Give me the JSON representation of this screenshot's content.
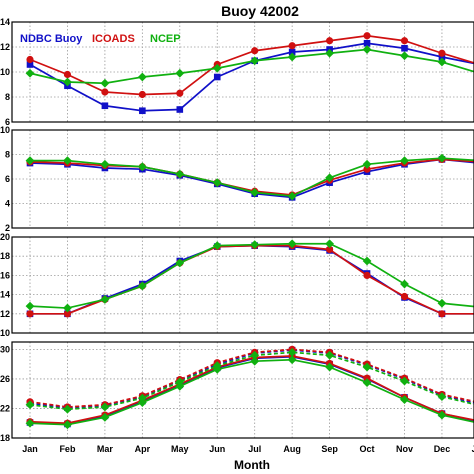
{
  "chart_data": {
    "type": "line",
    "title": "Buoy 42002",
    "xlabel": "Month",
    "categories": [
      "Jan",
      "Feb",
      "Mar",
      "Apr",
      "May",
      "Jun",
      "Jul",
      "Aug",
      "Sep",
      "Oct",
      "Nov",
      "Dec",
      "Jan"
    ],
    "grid": true,
    "legend": {
      "placement": "top-left",
      "panel": 0
    },
    "colors": {
      "NDBC Buoy": "#1010c8",
      "ICOADS": "#d01010",
      "NCEP": "#10b010"
    },
    "panels": [
      {
        "ylim": [
          6,
          14
        ],
        "yticks": [
          6,
          8,
          10,
          12,
          14
        ],
        "series": [
          {
            "name": "NDBC Buoy",
            "values": [
              10.6,
              8.9,
              7.3,
              6.9,
              7.0,
              9.6,
              10.9,
              11.6,
              11.8,
              12.3,
              11.9,
              11.2,
              10.6
            ]
          },
          {
            "name": "ICOADS",
            "values": [
              11.0,
              9.8,
              8.4,
              8.2,
              8.3,
              10.6,
              11.7,
              12.1,
              12.5,
              12.9,
              12.5,
              11.5,
              10.6
            ]
          },
          {
            "name": "NCEP",
            "values": [
              9.9,
              9.2,
              9.1,
              9.6,
              9.9,
              10.3,
              10.9,
              11.2,
              11.5,
              11.8,
              11.3,
              10.8,
              9.9
            ]
          }
        ]
      },
      {
        "ylim": [
          2,
          10
        ],
        "yticks": [
          2,
          4,
          6,
          8,
          10
        ],
        "series": [
          {
            "name": "NDBC Buoy",
            "values": [
              7.3,
              7.2,
              6.9,
              6.8,
              6.3,
              5.6,
              4.8,
              4.5,
              5.7,
              6.6,
              7.2,
              7.6,
              7.3
            ]
          },
          {
            "name": "ICOADS",
            "values": [
              7.4,
              7.3,
              7.1,
              7.0,
              6.4,
              5.7,
              5.0,
              4.7,
              5.9,
              6.8,
              7.3,
              7.6,
              7.4
            ]
          },
          {
            "name": "NCEP",
            "values": [
              7.5,
              7.5,
              7.2,
              7.0,
              6.4,
              5.7,
              4.9,
              4.6,
              6.1,
              7.2,
              7.5,
              7.7,
              7.5
            ]
          }
        ]
      },
      {
        "ylim": [
          10,
          20
        ],
        "yticks": [
          10,
          12,
          14,
          16,
          18,
          20
        ],
        "series": [
          {
            "name": "NDBC Buoy",
            "values": [
              12.0,
              12.0,
              13.6,
              15.1,
              17.5,
              19.0,
              19.1,
              19.0,
              18.6,
              16.2,
              13.7,
              12.0,
              12.0
            ]
          },
          {
            "name": "ICOADS",
            "values": [
              12.0,
              12.0,
              13.5,
              14.9,
              17.3,
              19.0,
              19.1,
              19.1,
              18.7,
              16.0,
              13.8,
              12.0,
              12.0
            ]
          },
          {
            "name": "NCEP",
            "values": [
              12.8,
              12.6,
              13.5,
              14.9,
              17.3,
              19.1,
              19.2,
              19.3,
              19.3,
              17.5,
              15.1,
              13.1,
              12.7
            ]
          }
        ]
      },
      {
        "ylim": [
          18,
          31
        ],
        "yticks": [
          18,
          22,
          26,
          30
        ],
        "series": [
          {
            "name": "NDBC Buoy",
            "values": [
              20.1,
              19.9,
              21.0,
              23.0,
              25.2,
              27.5,
              28.8,
              29.0,
              28.0,
              26.0,
              23.5,
              21.3,
              20.2
            ]
          },
          {
            "name": "ICOADS",
            "values": [
              20.2,
              20.0,
              21.1,
              23.1,
              25.3,
              27.6,
              28.9,
              29.1,
              28.1,
              26.1,
              23.5,
              21.3,
              20.3
            ]
          },
          {
            "name": "NCEP",
            "values": [
              20.0,
              19.8,
              20.8,
              22.8,
              25.0,
              27.3,
              28.4,
              28.6,
              27.6,
              25.5,
              23.2,
              21.1,
              20.0
            ]
          },
          {
            "name": "NDBC Buoy",
            "dashed": true,
            "values": [
              22.7,
              22.1,
              22.4,
              23.6,
              25.8,
              28.0,
              29.5,
              29.9,
              29.5,
              27.9,
              26.0,
              23.8,
              22.6
            ]
          },
          {
            "name": "ICOADS",
            "dashed": true,
            "values": [
              22.9,
              22.2,
              22.5,
              23.7,
              25.9,
              28.2,
              29.6,
              30.0,
              29.6,
              28.0,
              26.1,
              23.9,
              22.8
            ]
          },
          {
            "name": "NCEP",
            "dashed": true,
            "values": [
              22.5,
              21.9,
              22.2,
              23.4,
              25.6,
              27.8,
              29.2,
              29.6,
              29.2,
              27.6,
              25.7,
              23.6,
              22.4
            ]
          }
        ]
      }
    ]
  }
}
